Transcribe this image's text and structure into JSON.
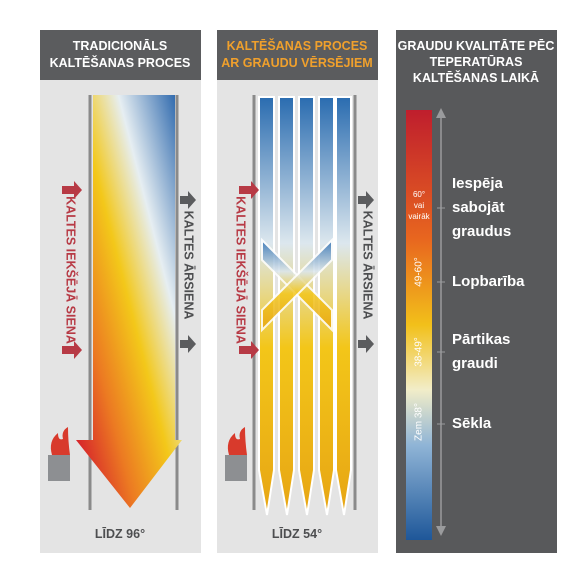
{
  "panels": [
    {
      "title": [
        "TRADICIONĀLS",
        "KALTĒŠANAS PROCES"
      ],
      "inner_wall": "KALTES IEKŠĒJĀ SIENA",
      "outer_wall": "KALTES ĀRSIENA",
      "bottom": "LĪDZ 96°"
    },
    {
      "title": [
        "KALTĒŠANAS PROCES",
        "AR GRAUDU VĒRSĒJIEM"
      ],
      "inner_wall": "KALTES IEKŠĒJĀ SIENA",
      "outer_wall": "KALTES ĀRSIENA",
      "bottom": "LĪDZ 54°"
    }
  ],
  "quality": {
    "title": [
      "GRAUDU KVALITĀTE PĒC",
      "TEPERATŪRAS",
      "KALTĒŠANAS LAIKĀ"
    ],
    "scale": [
      [
        "60°",
        "vai",
        "vairāk"
      ],
      "49-60°",
      "38-49°",
      "Zem 38°"
    ],
    "labels": [
      [
        "Iespēja",
        "sabojāt",
        "graudus"
      ],
      [
        "Lopbarība"
      ],
      [
        "Pārtikas",
        "graudi"
      ],
      [
        "Sēkla"
      ]
    ]
  }
}
